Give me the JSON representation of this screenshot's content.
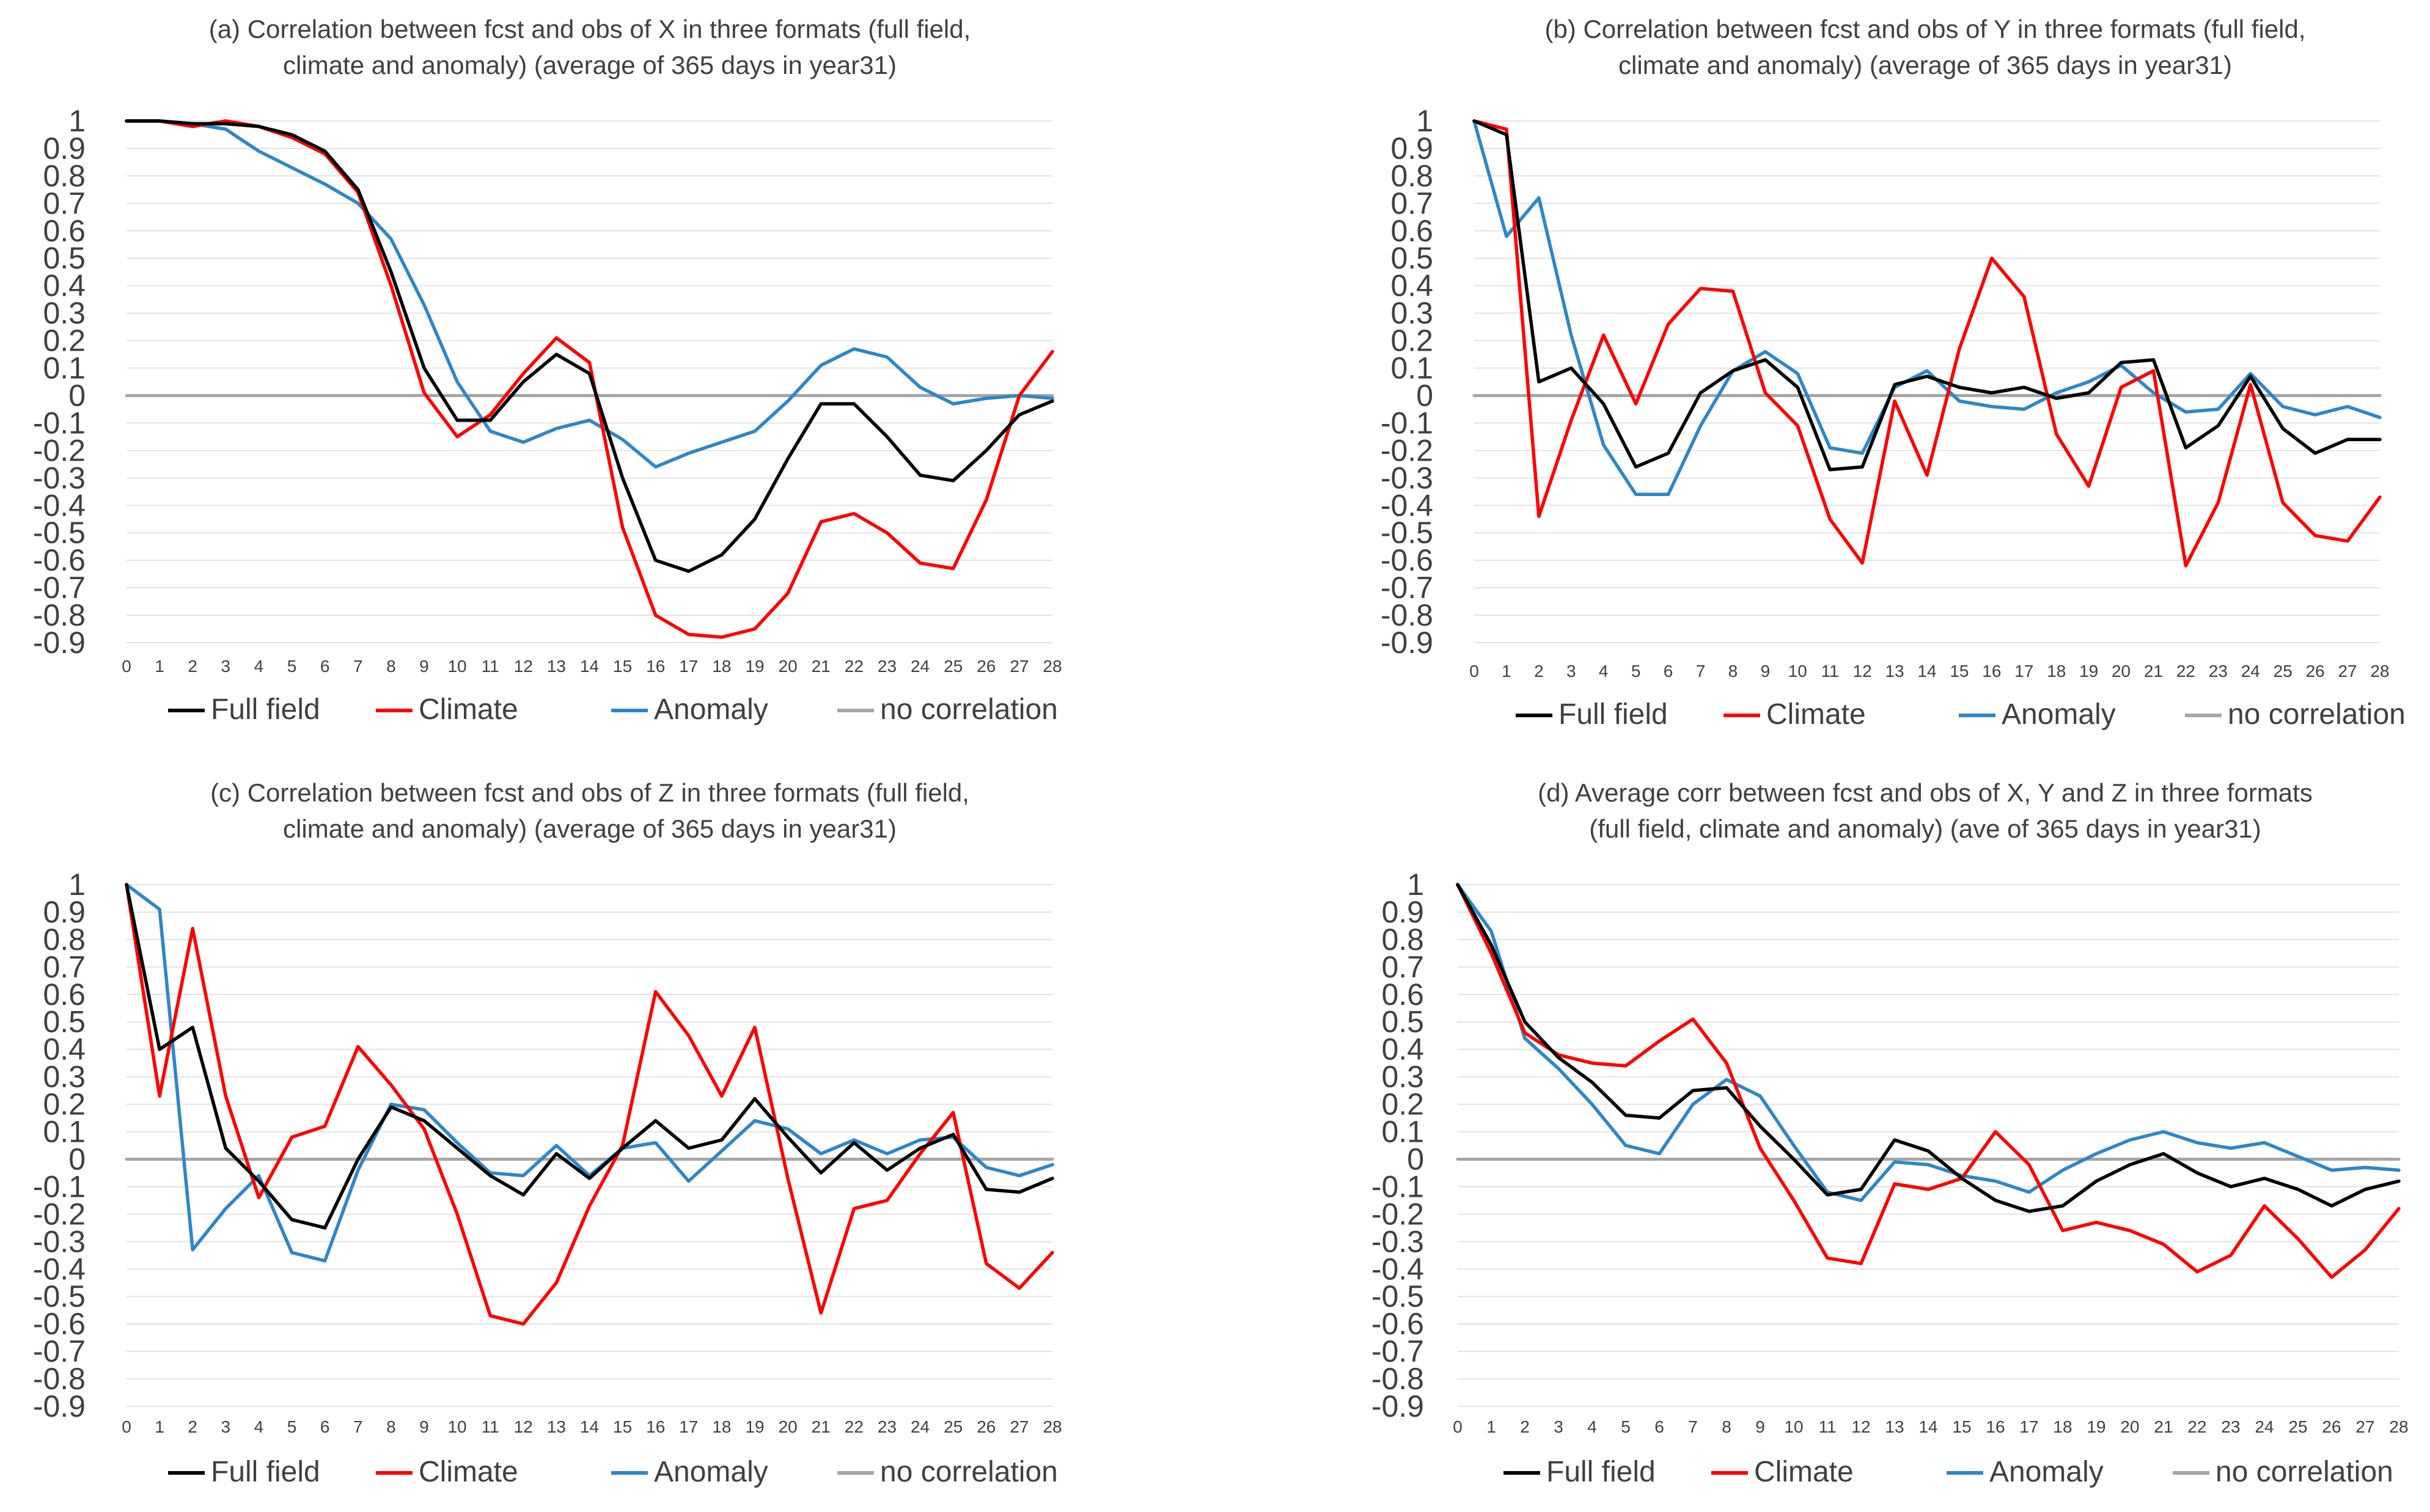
{
  "chart_data": [
    {
      "id": "a",
      "type": "line",
      "title_lines": [
        "(a) Correlation between fcst and obs of X in three formats (full field,",
        "climate and anomaly) (average of 365 days in year31)"
      ],
      "x": [
        0,
        1,
        2,
        3,
        4,
        5,
        6,
        7,
        8,
        9,
        10,
        11,
        12,
        13,
        14,
        15,
        16,
        17,
        18,
        19,
        20,
        21,
        22,
        23,
        24,
        25,
        26,
        27,
        28
      ],
      "x_tick_labels": [
        "0",
        "1",
        "2",
        "3",
        "4",
        "5",
        "6",
        "7",
        "8",
        "9",
        "10",
        "11",
        "12",
        "13",
        "14",
        "15",
        "16",
        "17",
        "18",
        "19",
        "20",
        "21",
        "22",
        "23",
        "24",
        "25",
        "26",
        "27",
        "28"
      ],
      "ylim": [
        -0.9,
        1
      ],
      "y_tick_labels": [
        "1",
        "0.9",
        "0.8",
        "0.7",
        "0.6",
        "0.5",
        "0.4",
        "0.3",
        "0.2",
        "0.1",
        "0",
        "-0.1",
        "-0.2",
        "-0.3",
        "-0.4",
        "-0.5",
        "-0.6",
        "-0.7",
        "-0.8",
        "-0.9"
      ],
      "grid": true,
      "legend_position": "bottom",
      "series": [
        {
          "name": "Full field",
          "color": "#000000",
          "values": [
            1,
            1,
            0.99,
            0.99,
            0.98,
            0.95,
            0.89,
            0.75,
            0.45,
            0.1,
            -0.09,
            -0.09,
            0.05,
            0.15,
            0.08,
            -0.3,
            -0.6,
            -0.64,
            -0.58,
            -0.45,
            -0.23,
            -0.03,
            -0.03,
            -0.15,
            -0.29,
            -0.31,
            -0.2,
            -0.07,
            -0.02
          ]
        },
        {
          "name": "Climate",
          "color": "#ff0000",
          "values": [
            1,
            1,
            0.98,
            1,
            0.98,
            0.94,
            0.88,
            0.74,
            0.4,
            0.01,
            -0.15,
            -0.07,
            0.08,
            0.21,
            0.12,
            -0.48,
            -0.8,
            -0.87,
            -0.88,
            -0.85,
            -0.72,
            -0.46,
            -0.43,
            -0.5,
            -0.61,
            -0.63,
            -0.38,
            0,
            0.16
          ]
        },
        {
          "name": "Anomaly",
          "color": "#2e86c8",
          "values": [
            1,
            1,
            0.99,
            0.97,
            0.89,
            0.83,
            0.77,
            0.7,
            0.57,
            0.33,
            0.05,
            -0.13,
            -0.17,
            -0.12,
            -0.09,
            -0.16,
            -0.26,
            -0.21,
            -0.17,
            -0.13,
            -0.02,
            0.11,
            0.17,
            0.14,
            0.03,
            -0.03,
            -0.01,
            0,
            -0.01
          ]
        },
        {
          "name": "no correlation",
          "color": "#a6a6a6",
          "values": [
            0,
            0,
            0,
            0,
            0,
            0,
            0,
            0,
            0,
            0,
            0,
            0,
            0,
            0,
            0,
            0,
            0,
            0,
            0,
            0,
            0,
            0,
            0,
            0,
            0,
            0,
            0,
            0,
            0
          ]
        }
      ]
    },
    {
      "id": "b",
      "type": "line",
      "title_lines": [
        "(b) Correlation between fcst and obs of Y in three formats (full field,",
        "climate and anomaly) (average of 365 days in year31)"
      ],
      "x": [
        0,
        1,
        2,
        3,
        4,
        5,
        6,
        7,
        8,
        9,
        10,
        11,
        12,
        13,
        14,
        15,
        16,
        17,
        18,
        19,
        20,
        21,
        22,
        23,
        24,
        25,
        26,
        27,
        28
      ],
      "x_tick_labels": [
        "0",
        "1",
        "2",
        "3",
        "4",
        "5",
        "6",
        "7",
        "8",
        "9",
        "10",
        "11",
        "12",
        "13",
        "14",
        "15",
        "16",
        "17",
        "18",
        "19",
        "20",
        "21",
        "22",
        "23",
        "24",
        "25",
        "26",
        "27",
        "28"
      ],
      "ylim": [
        -0.9,
        1
      ],
      "y_tick_labels": [
        "1",
        "0.9",
        "0.8",
        "0.7",
        "0.6",
        "0.5",
        "0.4",
        "0.3",
        "0.2",
        "0.1",
        "0",
        "-0.1",
        "-0.2",
        "-0.3",
        "-0.4",
        "-0.5",
        "-0.6",
        "-0.7",
        "-0.8",
        "-0.9"
      ],
      "grid": true,
      "legend_position": "bottom",
      "series": [
        {
          "name": "Full field",
          "color": "#000000",
          "values": [
            1,
            0.95,
            0.05,
            0.1,
            -0.03,
            -0.26,
            -0.21,
            0.01,
            0.09,
            0.13,
            0.03,
            -0.27,
            -0.26,
            0.04,
            0.07,
            0.03,
            0.01,
            0.03,
            -0.01,
            0.01,
            0.12,
            0.13,
            -0.19,
            -0.11,
            0.07,
            -0.12,
            -0.21,
            -0.16,
            -0.16
          ]
        },
        {
          "name": "Climate",
          "color": "#ff0000",
          "values": [
            1,
            0.97,
            -0.44,
            -0.09,
            0.22,
            -0.03,
            0.26,
            0.39,
            0.38,
            0.01,
            -0.11,
            -0.45,
            -0.61,
            -0.02,
            -0.29,
            0.17,
            0.5,
            0.36,
            -0.14,
            -0.33,
            0.03,
            0.09,
            -0.62,
            -0.39,
            0.04,
            -0.39,
            -0.51,
            -0.53,
            -0.37
          ]
        },
        {
          "name": "Anomaly",
          "color": "#2e86c8",
          "values": [
            1,
            0.58,
            0.72,
            0.22,
            -0.18,
            -0.36,
            -0.36,
            -0.11,
            0.09,
            0.16,
            0.08,
            -0.19,
            -0.21,
            0.03,
            0.09,
            -0.02,
            -0.04,
            -0.05,
            0.01,
            0.05,
            0.11,
            0.01,
            -0.06,
            -0.05,
            0.08,
            -0.04,
            -0.07,
            -0.04,
            -0.08
          ]
        },
        {
          "name": "no correlation",
          "color": "#a6a6a6",
          "values": [
            0,
            0,
            0,
            0,
            0,
            0,
            0,
            0,
            0,
            0,
            0,
            0,
            0,
            0,
            0,
            0,
            0,
            0,
            0,
            0,
            0,
            0,
            0,
            0,
            0,
            0,
            0,
            0,
            0
          ]
        }
      ]
    },
    {
      "id": "c",
      "type": "line",
      "title_lines": [
        "(c) Correlation between fcst and obs of Z in three formats (full field,",
        "climate and anomaly) (average of 365 days in year31)"
      ],
      "x": [
        0,
        1,
        2,
        3,
        4,
        5,
        6,
        7,
        8,
        9,
        10,
        11,
        12,
        13,
        14,
        15,
        16,
        17,
        18,
        19,
        20,
        21,
        22,
        23,
        24,
        25,
        26,
        27,
        28
      ],
      "x_tick_labels": [
        "0",
        "1",
        "2",
        "3",
        "4",
        "5",
        "6",
        "7",
        "8",
        "9",
        "10",
        "11",
        "12",
        "13",
        "14",
        "15",
        "16",
        "17",
        "18",
        "19",
        "20",
        "21",
        "22",
        "23",
        "24",
        "25",
        "26",
        "27",
        "28"
      ],
      "ylim": [
        -0.9,
        1
      ],
      "y_tick_labels": [
        "1",
        "0.9",
        "0.8",
        "0.7",
        "0.6",
        "0.5",
        "0.4",
        "0.3",
        "0.2",
        "0.1",
        "0",
        "-0.1",
        "-0.2",
        "-0.3",
        "-0.4",
        "-0.5",
        "-0.6",
        "-0.7",
        "-0.8",
        "-0.9"
      ],
      "grid": true,
      "legend_position": "bottom",
      "series": [
        {
          "name": "Full field",
          "color": "#000000",
          "values": [
            1,
            0.4,
            0.48,
            0.04,
            -0.08,
            -0.22,
            -0.25,
            0,
            0.19,
            0.14,
            0.04,
            -0.06,
            -0.13,
            0.02,
            -0.07,
            0.04,
            0.14,
            0.04,
            0.07,
            0.22,
            0.08,
            -0.05,
            0.06,
            -0.04,
            0.04,
            0.09,
            -0.11,
            -0.12,
            -0.07
          ]
        },
        {
          "name": "Climate",
          "color": "#ff0000",
          "values": [
            1,
            0.23,
            0.84,
            0.23,
            -0.14,
            0.08,
            0.12,
            0.41,
            0.27,
            0.11,
            -0.2,
            -0.57,
            -0.6,
            -0.45,
            -0.17,
            0.05,
            0.61,
            0.45,
            0.23,
            0.48,
            -0.07,
            -0.56,
            -0.18,
            -0.15,
            0.02,
            0.17,
            -0.38,
            -0.47,
            -0.34
          ]
        },
        {
          "name": "Anomaly",
          "color": "#2e86c8",
          "values": [
            1,
            0.91,
            -0.33,
            -0.18,
            -0.06,
            -0.34,
            -0.37,
            -0.04,
            0.2,
            0.18,
            0.06,
            -0.05,
            -0.06,
            0.05,
            -0.06,
            0.04,
            0.06,
            -0.08,
            0.03,
            0.14,
            0.11,
            0.02,
            0.07,
            0.02,
            0.07,
            0.08,
            -0.03,
            -0.06,
            -0.02
          ]
        },
        {
          "name": "no correlation",
          "color": "#a6a6a6",
          "values": [
            0,
            0,
            0,
            0,
            0,
            0,
            0,
            0,
            0,
            0,
            0,
            0,
            0,
            0,
            0,
            0,
            0,
            0,
            0,
            0,
            0,
            0,
            0,
            0,
            0,
            0,
            0,
            0,
            0
          ]
        }
      ]
    },
    {
      "id": "d",
      "type": "line",
      "title_lines": [
        "(d) Average corr between fcst and obs of X, Y and Z in three formats",
        "(full field, climate and anomaly) (ave of 365 days in year31)"
      ],
      "x": [
        0,
        1,
        2,
        3,
        4,
        5,
        6,
        7,
        8,
        9,
        10,
        11,
        12,
        13,
        14,
        15,
        16,
        17,
        18,
        19,
        20,
        21,
        22,
        23,
        24,
        25,
        26,
        27,
        28
      ],
      "x_tick_labels": [
        "0",
        "1",
        "2",
        "3",
        "4",
        "5",
        "6",
        "7",
        "8",
        "9",
        "10",
        "11",
        "12",
        "13",
        "14",
        "15",
        "16",
        "17",
        "18",
        "19",
        "20",
        "21",
        "22",
        "23",
        "24",
        "25",
        "26",
        "27",
        "28"
      ],
      "ylim": [
        -0.9,
        1
      ],
      "y_tick_labels": [
        "1",
        "0.9",
        "0.8",
        "0.7",
        "0.6",
        "0.5",
        "0.4",
        "0.3",
        "0.2",
        "0.1",
        "0",
        "-0.1",
        "-0.2",
        "-0.3",
        "-0.4",
        "-0.5",
        "-0.6",
        "-0.7",
        "-0.8",
        "-0.9"
      ],
      "grid": true,
      "legend_position": "bottom",
      "series": [
        {
          "name": "Full field",
          "color": "#000000",
          "values": [
            1,
            0.78,
            0.5,
            0.37,
            0.28,
            0.16,
            0.15,
            0.25,
            0.26,
            0.12,
            0,
            -0.13,
            -0.11,
            0.07,
            0.03,
            -0.07,
            -0.15,
            -0.19,
            -0.17,
            -0.08,
            -0.02,
            0.02,
            -0.05,
            -0.1,
            -0.07,
            -0.11,
            -0.17,
            -0.11,
            -0.08
          ]
        },
        {
          "name": "Climate",
          "color": "#ff0000",
          "values": [
            1,
            0.75,
            0.46,
            0.38,
            0.35,
            0.34,
            0.43,
            0.51,
            0.35,
            0.04,
            -0.15,
            -0.36,
            -0.38,
            -0.09,
            -0.11,
            -0.07,
            0.1,
            -0.02,
            -0.26,
            -0.23,
            -0.26,
            -0.31,
            -0.41,
            -0.35,
            -0.17,
            -0.29,
            -0.43,
            -0.33,
            -0.18
          ]
        },
        {
          "name": "Anomaly",
          "color": "#2e86c8",
          "values": [
            1,
            0.83,
            0.44,
            0.33,
            0.2,
            0.05,
            0.02,
            0.2,
            0.29,
            0.23,
            0.05,
            -0.12,
            -0.15,
            -0.01,
            -0.02,
            -0.06,
            -0.08,
            -0.12,
            -0.04,
            0.02,
            0.07,
            0.1,
            0.06,
            0.04,
            0.06,
            0.01,
            -0.04,
            -0.03,
            -0.04
          ]
        },
        {
          "name": "no correlation",
          "color": "#a6a6a6",
          "values": [
            0,
            0,
            0,
            0,
            0,
            0,
            0,
            0,
            0,
            0,
            0,
            0,
            0,
            0,
            0,
            0,
            0,
            0,
            0,
            0,
            0,
            0,
            0,
            0,
            0,
            0,
            0,
            0,
            0
          ]
        }
      ]
    }
  ]
}
